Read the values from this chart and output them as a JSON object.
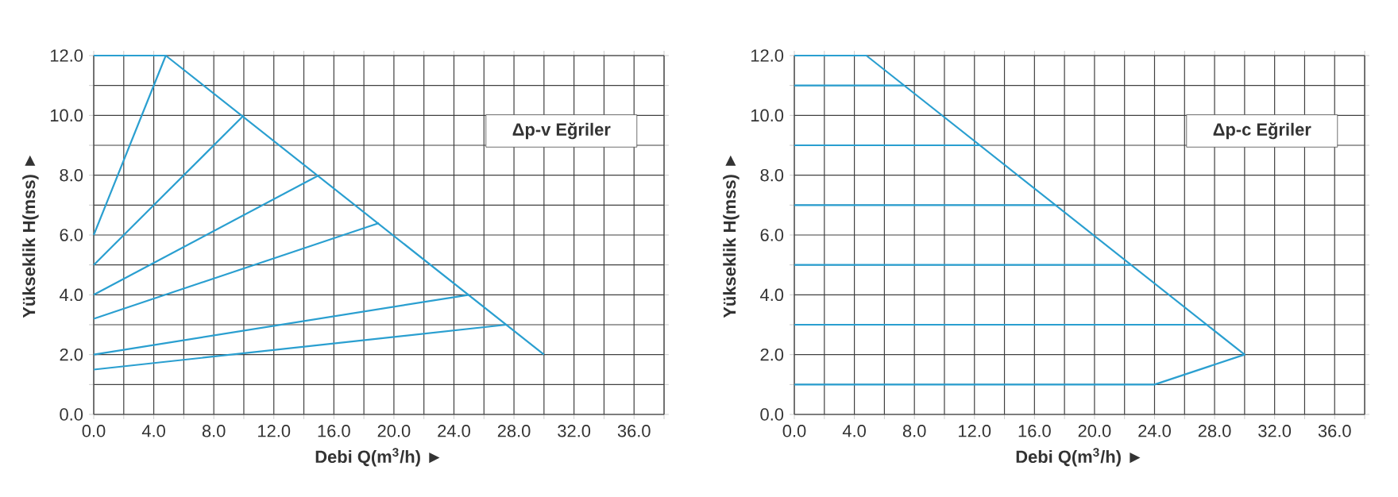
{
  "chart_data": [
    {
      "type": "line",
      "xlabel": "Debi Q(m$^{3}$/h) ►",
      "ylabel": "Yükseklik H(mss) ►",
      "annotations": [
        "Δp-v Eğriler"
      ],
      "grid": true,
      "xlim": [
        0,
        38
      ],
      "ylim": [
        0,
        12
      ],
      "xticks": [
        {
          "value": 0,
          "label": "0.0"
        },
        {
          "value": 2,
          "label": null
        },
        {
          "value": 4,
          "label": "4.0"
        },
        {
          "value": 6,
          "label": null
        },
        {
          "value": 8,
          "label": "8.0"
        },
        {
          "value": 10,
          "label": null
        },
        {
          "value": 12,
          "label": "12.0"
        },
        {
          "value": 14,
          "label": null
        },
        {
          "value": 16,
          "label": "16.0"
        },
        {
          "value": 18,
          "label": null
        },
        {
          "value": 20,
          "label": "20.0"
        },
        {
          "value": 22,
          "label": null
        },
        {
          "value": 24,
          "label": "24.0"
        },
        {
          "value": 26,
          "label": null
        },
        {
          "value": 28,
          "label": "28.0"
        },
        {
          "value": 30,
          "label": null
        },
        {
          "value": 32,
          "label": "32.0"
        },
        {
          "value": 34,
          "label": null
        },
        {
          "value": 36,
          "label": "36.0"
        },
        {
          "value": 38,
          "label": null
        }
      ],
      "yticks": [
        {
          "value": 0,
          "label": "0.0"
        },
        {
          "value": 1,
          "label": null
        },
        {
          "value": 2,
          "label": "2.0"
        },
        {
          "value": 3,
          "label": null
        },
        {
          "value": 4,
          "label": "4.0"
        },
        {
          "value": 5,
          "label": null
        },
        {
          "value": 6,
          "label": "6.0"
        },
        {
          "value": 7,
          "label": null
        },
        {
          "value": 8,
          "label": "8.0"
        },
        {
          "value": 9,
          "label": null
        },
        {
          "value": 10,
          "label": "10.0"
        },
        {
          "value": 11,
          "label": null
        },
        {
          "value": 12,
          "label": "12.0"
        }
      ],
      "series": [
        {
          "color": "#2a9fd0",
          "x": [
            0,
            4.8,
            30
          ],
          "values": [
            12,
            12,
            2
          ]
        },
        {
          "color": "#2a9fd0",
          "x": [
            0,
            4.8
          ],
          "values": [
            6,
            12
          ]
        },
        {
          "color": "#2a9fd0",
          "x": [
            0,
            10
          ],
          "values": [
            5,
            10
          ]
        },
        {
          "color": "#2a9fd0",
          "x": [
            0,
            15
          ],
          "values": [
            4,
            8
          ]
        },
        {
          "color": "#2a9fd0",
          "x": [
            0,
            19
          ],
          "values": [
            3.2,
            6.4
          ]
        },
        {
          "color": "#2a9fd0",
          "x": [
            0,
            25
          ],
          "values": [
            2,
            4
          ]
        },
        {
          "color": "#2a9fd0",
          "x": [
            0,
            27.5
          ],
          "values": [
            1.5,
            3
          ]
        }
      ]
    },
    {
      "type": "line",
      "xlabel": "Debi Q(m$^{3}$/h) ►",
      "ylabel": "Yükseklik H(mss) ►",
      "annotations": [
        "Δp-c Eğriler"
      ],
      "grid": true,
      "xlim": [
        0,
        38
      ],
      "ylim": [
        0,
        12
      ],
      "xticks": [
        {
          "value": 0,
          "label": "0.0"
        },
        {
          "value": 2,
          "label": null
        },
        {
          "value": 4,
          "label": "4.0"
        },
        {
          "value": 6,
          "label": null
        },
        {
          "value": 8,
          "label": "8.0"
        },
        {
          "value": 10,
          "label": null
        },
        {
          "value": 12,
          "label": "12.0"
        },
        {
          "value": 14,
          "label": null
        },
        {
          "value": 16,
          "label": "16.0"
        },
        {
          "value": 18,
          "label": null
        },
        {
          "value": 20,
          "label": "20.0"
        },
        {
          "value": 22,
          "label": null
        },
        {
          "value": 24,
          "label": "24.0"
        },
        {
          "value": 26,
          "label": null
        },
        {
          "value": 28,
          "label": "28.0"
        },
        {
          "value": 30,
          "label": null
        },
        {
          "value": 32,
          "label": "32.0"
        },
        {
          "value": 34,
          "label": null
        },
        {
          "value": 36,
          "label": "36.0"
        },
        {
          "value": 38,
          "label": null
        }
      ],
      "yticks": [
        {
          "value": 0,
          "label": "0.0"
        },
        {
          "value": 1,
          "label": null
        },
        {
          "value": 2,
          "label": "2.0"
        },
        {
          "value": 3,
          "label": null
        },
        {
          "value": 4,
          "label": "4.0"
        },
        {
          "value": 5,
          "label": null
        },
        {
          "value": 6,
          "label": "6.0"
        },
        {
          "value": 7,
          "label": null
        },
        {
          "value": 8,
          "label": "8.0"
        },
        {
          "value": 9,
          "label": null
        },
        {
          "value": 10,
          "label": "10.0"
        },
        {
          "value": 11,
          "label": null
        },
        {
          "value": 12,
          "label": "12.0"
        }
      ],
      "series": [
        {
          "color": "#2a9fd0",
          "x": [
            0,
            4.8,
            30,
            24,
            0
          ],
          "values": [
            12,
            12,
            2,
            1,
            1
          ]
        },
        {
          "color": "#2a9fd0",
          "x": [
            0,
            7.3
          ],
          "values": [
            11,
            11
          ]
        },
        {
          "color": "#2a9fd0",
          "x": [
            0,
            12.4
          ],
          "values": [
            9,
            9
          ]
        },
        {
          "color": "#2a9fd0",
          "x": [
            0,
            17.4
          ],
          "values": [
            7,
            7
          ]
        },
        {
          "color": "#2a9fd0",
          "x": [
            0,
            22.4
          ],
          "values": [
            5,
            5
          ]
        },
        {
          "color": "#2a9fd0",
          "x": [
            0,
            27.5
          ],
          "values": [
            3,
            3
          ]
        }
      ]
    }
  ]
}
